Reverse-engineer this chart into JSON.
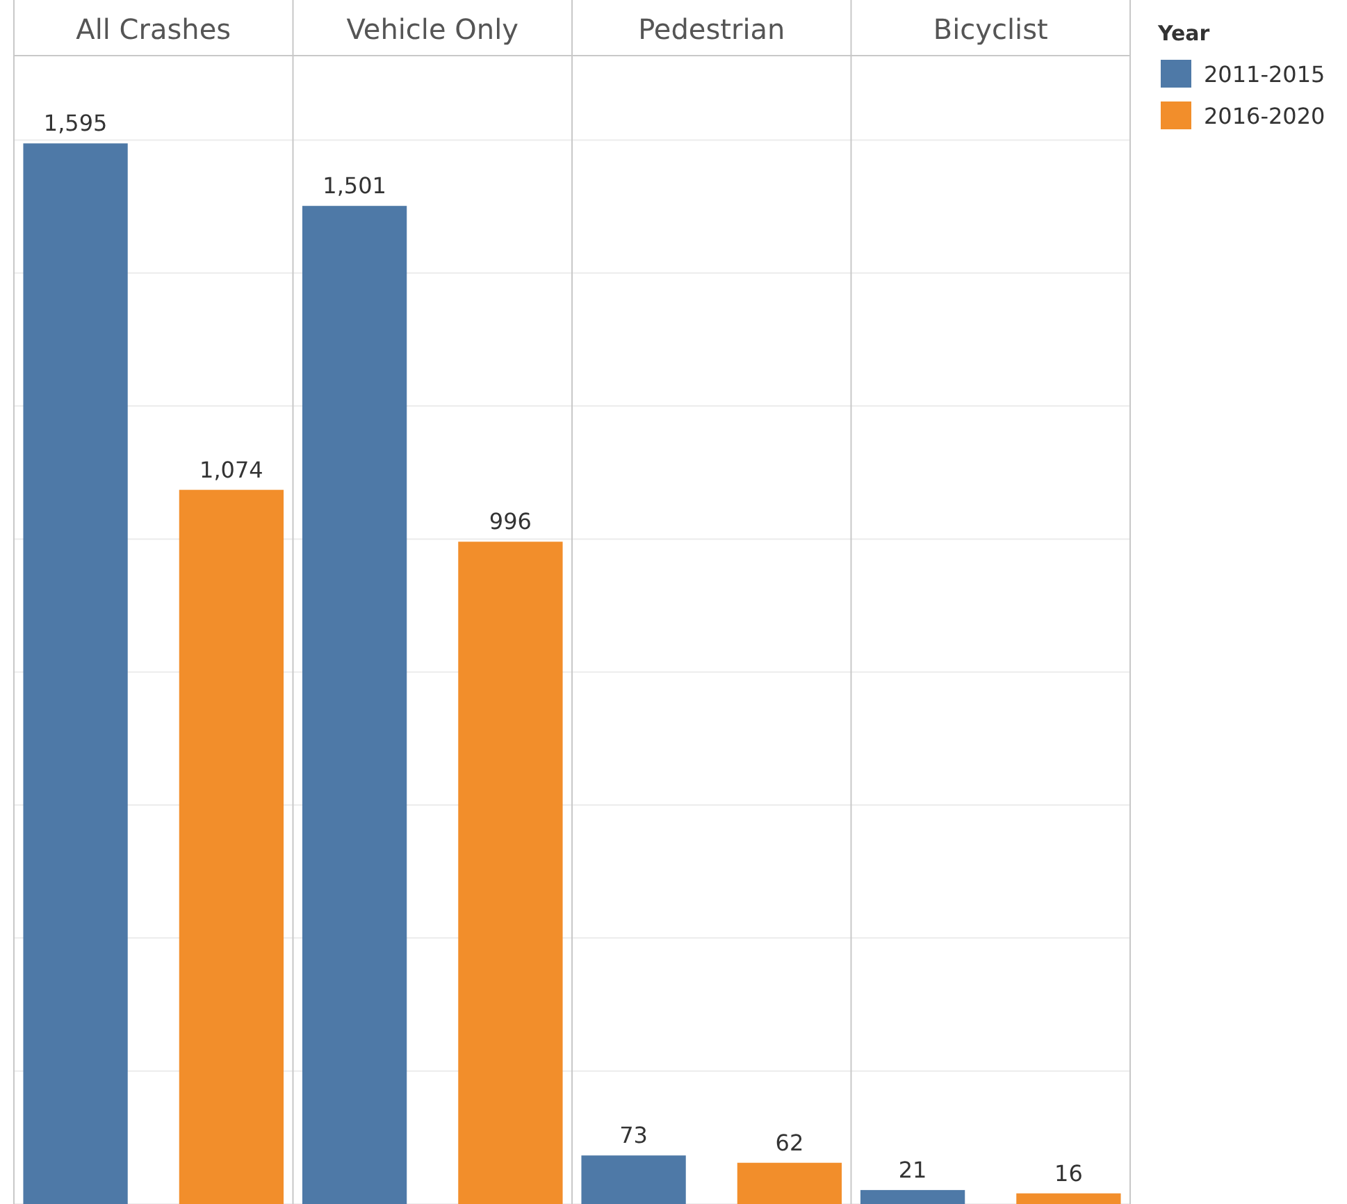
{
  "chart_data": {
    "type": "bar",
    "categories": [
      "All Crashes",
      "Vehicle Only",
      "Pedestrian",
      "Bicyclist"
    ],
    "series": [
      {
        "name": "2011-2015",
        "color": "#4e79a7",
        "values": [
          1595,
          1501,
          73,
          21
        ],
        "value_labels": [
          "1,595",
          "1,501",
          "73",
          "21"
        ]
      },
      {
        "name": "2016-2020",
        "color": "#f28e2b",
        "values": [
          1074,
          996,
          62,
          16
        ],
        "value_labels": [
          "1,074",
          "996",
          "62",
          "16"
        ]
      }
    ],
    "legend_title": "Year",
    "legend": "right",
    "grid": "y",
    "tick_labels": "x",
    "ylim": [
      0,
      1727
    ],
    "yticks": [
      {
        "value": 0,
        "label": null
      },
      {
        "value": 200,
        "label": null
      },
      {
        "value": 400,
        "label": null
      },
      {
        "value": 600,
        "label": null
      },
      {
        "value": 800,
        "label": null
      },
      {
        "value": 1000,
        "label": null
      },
      {
        "value": 1200,
        "label": null
      },
      {
        "value": 1400,
        "label": null
      },
      {
        "value": 1600,
        "label": null
      }
    ]
  }
}
